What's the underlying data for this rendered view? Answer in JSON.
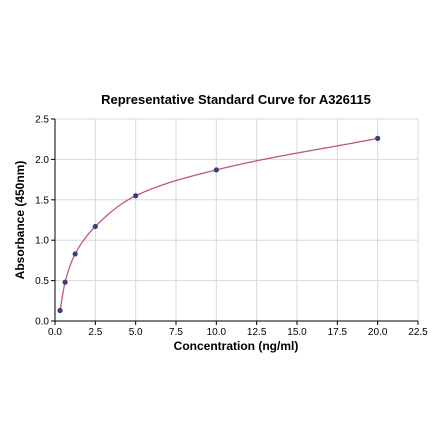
{
  "chart_data": {
    "type": "scatter",
    "title": "Representative Standard Curve for A326115",
    "xlabel": "Concentration (ng/ml)",
    "ylabel": "Absorbance (450nm)",
    "xlim": [
      0,
      22.5
    ],
    "ylim": [
      0,
      2.5
    ],
    "x_ticks": [
      "0.0",
      "2.5",
      "5.0",
      "7.5",
      "10.0",
      "12.5",
      "15.0",
      "17.5",
      "20.0",
      "22.5"
    ],
    "y_ticks": [
      "0.0",
      "0.5",
      "1.0",
      "1.5",
      "2.0",
      "2.5"
    ],
    "grid": true,
    "series": [
      {
        "x": [
          0.313,
          0.625,
          1.25,
          2.5,
          5.0,
          10.0,
          20.0
        ],
        "y": [
          0.13,
          0.48,
          0.83,
          1.17,
          1.55,
          1.87,
          2.26
        ]
      }
    ],
    "fit_curve": true,
    "colors": {
      "points": "#3b3f75",
      "curve": "#c0587a"
    }
  }
}
